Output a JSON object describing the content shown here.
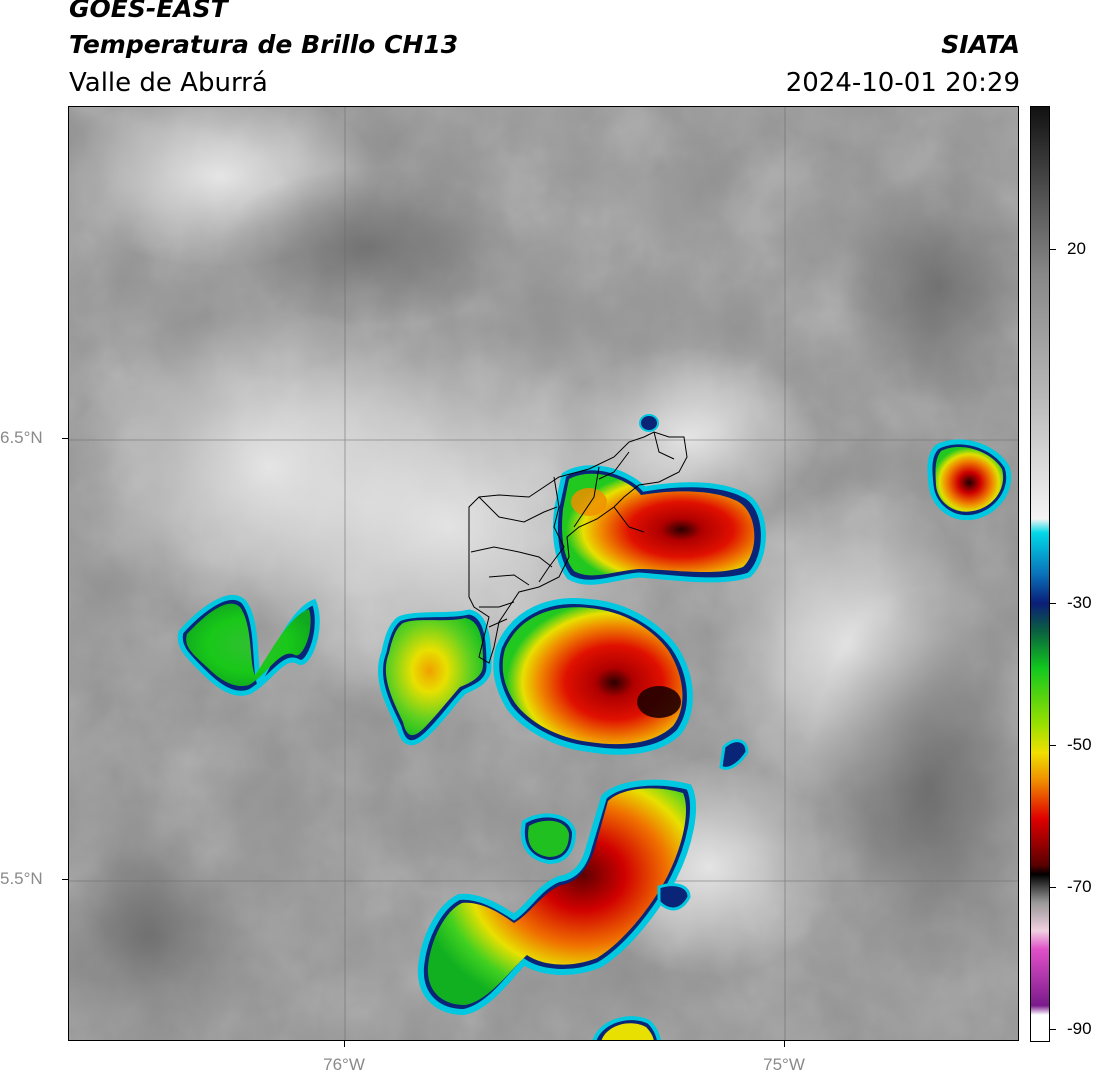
{
  "header": {
    "satellite": "GOES-EAST",
    "product": "Temperatura de Brillo CH13",
    "region": "Valle de Aburrá",
    "organization": "SIATA",
    "datetime": "2024-10-01 20:29"
  },
  "map": {
    "latitude_labels": [
      "6.5°N",
      "5.5°N"
    ],
    "longitude_labels": [
      "76°W",
      "75°W"
    ]
  },
  "colorbar": {
    "tick_labels": [
      "20",
      "-30",
      "-50",
      "-70",
      "-90"
    ],
    "range": [
      -90,
      30
    ],
    "colors": {
      "warm_black": "#111111",
      "gray": "#8c8c8c",
      "white": "#f2f2f2",
      "cyan": "#00d8e8",
      "navy": "#0a1e78",
      "green": "#12c81e",
      "yellow": "#f0e000",
      "orange": "#f08c00",
      "red": "#e00000",
      "darkred": "#5a0000",
      "magenta": "#e050c8",
      "purple": "#7a1a8c"
    }
  }
}
